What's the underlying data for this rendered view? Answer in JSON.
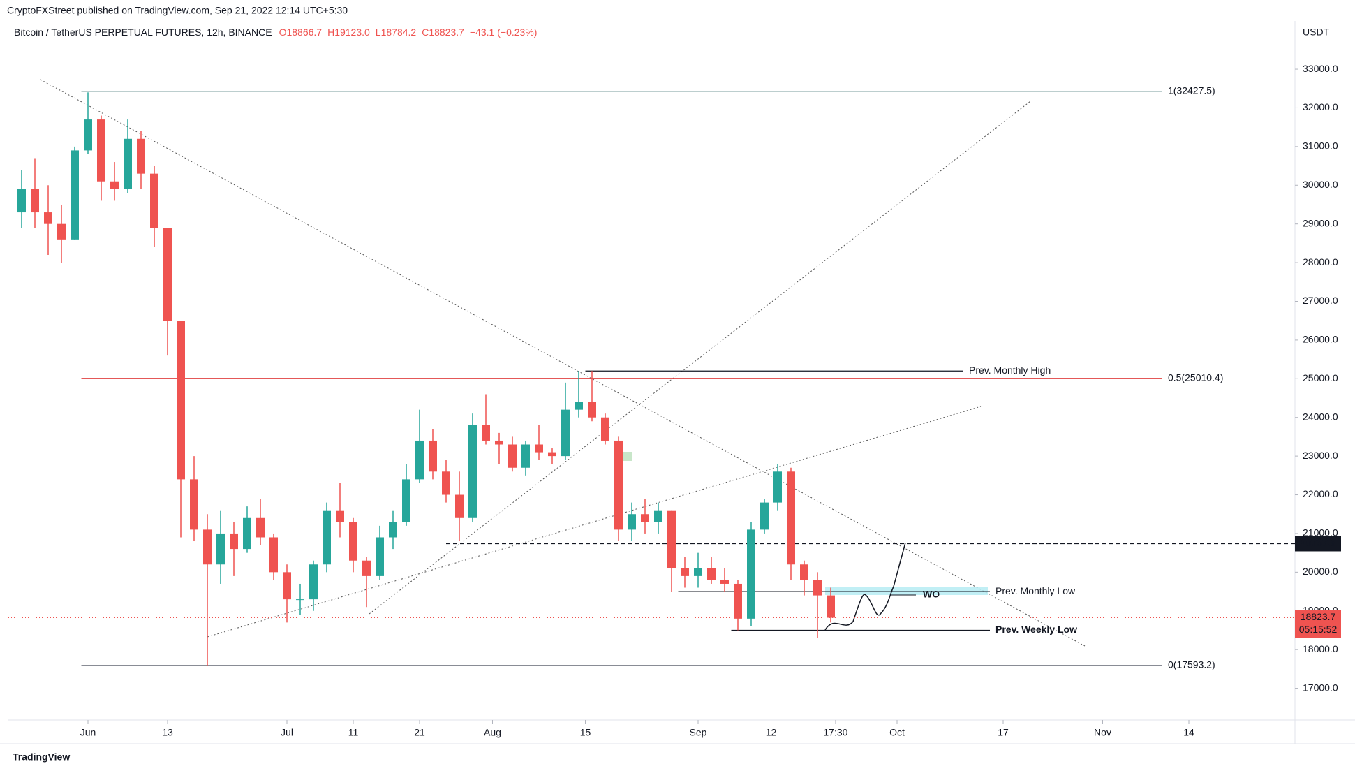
{
  "header": {
    "publisher": "CryptoFXStreet published on TradingView.com, Sep 21, 2022 12:14 UTC+5:30",
    "symbol": "Bitcoin / TetherUS PERPETUAL FUTURES, 12h, BINANCE",
    "readout": [
      "O18866.7",
      "H19123.0",
      "L18784.2",
      "C18823.7",
      "−43.1 (−0.23%)"
    ],
    "footer": "TradingView"
  },
  "chart_data": {
    "type": "candlestick",
    "y_unit": "USDT",
    "grid": false,
    "up_color": "#26a69a",
    "down_color": "#ef5350",
    "xlim": [
      "May 20",
      "Nov 30"
    ],
    "ylim": [
      16180,
      34120
    ],
    "xticks": [
      {
        "value": "Jun 1",
        "label": "Jun"
      },
      {
        "value": "Jun 13",
        "label": "13"
      },
      {
        "value": "Jul 1",
        "label": "Jul"
      },
      {
        "value": "Jul 11",
        "label": "11"
      },
      {
        "value": "Jul 21",
        "label": "21"
      },
      {
        "value": "Aug 1",
        "label": "Aug"
      },
      {
        "value": "Aug 15",
        "label": "15"
      },
      {
        "value": "Sep 1",
        "label": "Sep"
      },
      {
        "value": "Sep 12",
        "label": "12"
      },
      {
        "value": "Sep 21 17:30",
        "label": "17:30"
      },
      {
        "value": "Oct 1",
        "label": "Oct"
      },
      {
        "value": "Oct 17",
        "label": "17"
      },
      {
        "value": "Nov 1",
        "label": "Nov"
      },
      {
        "value": "Nov 14",
        "label": "14"
      }
    ],
    "yticks": [
      {
        "value": 17000,
        "label": "17000.0"
      },
      {
        "value": 18000,
        "label": "18000.0"
      },
      {
        "value": 19000,
        "label": "19000.0"
      },
      {
        "value": 20000,
        "label": "20000.0"
      },
      {
        "value": 21000,
        "label": "21000.0"
      },
      {
        "value": 22000,
        "label": "22000.0"
      },
      {
        "value": 23000,
        "label": "23000.0"
      },
      {
        "value": 24000,
        "label": "24000.0"
      },
      {
        "value": 25000,
        "label": "25000.0"
      },
      {
        "value": 26000,
        "label": "26000.0"
      },
      {
        "value": 27000,
        "label": "27000.0"
      },
      {
        "value": 28000,
        "label": "28000.0"
      },
      {
        "value": 29000,
        "label": "29000.0"
      },
      {
        "value": 30000,
        "label": "30000.0"
      },
      {
        "value": 31000,
        "label": "31000.0"
      },
      {
        "value": 32000,
        "label": "32000.0"
      },
      {
        "value": 33000,
        "label": "33000.0"
      }
    ],
    "x": [
      "May 21",
      "May 23",
      "May 25",
      "May 27",
      "May 29",
      "May 31",
      "Jun 2",
      "Jun 4",
      "Jun 6",
      "Jun 8",
      "Jun 10",
      "Jun 12",
      "Jun 14",
      "Jun 16",
      "Jun 18",
      "Jun 20",
      "Jun 22",
      "Jun 24",
      "Jun 26",
      "Jun 28",
      "Jun 30",
      "Jul 2",
      "Jul 4",
      "Jul 6",
      "Jul 8",
      "Jul 10",
      "Jul 12",
      "Jul 14",
      "Jul 16",
      "Jul 18",
      "Jul 20",
      "Jul 22",
      "Jul 24",
      "Jul 26",
      "Jul 28",
      "Jul 30",
      "Aug 1",
      "Aug 3",
      "Aug 5",
      "Aug 7",
      "Aug 9",
      "Aug 11",
      "Aug 13",
      "Aug 15",
      "Aug 17",
      "Aug 19",
      "Aug 21",
      "Aug 23",
      "Aug 25",
      "Aug 27",
      "Aug 29",
      "Aug 31",
      "Sep 2",
      "Sep 4",
      "Sep 6",
      "Sep 8",
      "Sep 10",
      "Sep 12",
      "Sep 14",
      "Sep 16",
      "Sep 18",
      "Sep 20"
    ],
    "ohlc": [
      [
        29300,
        30400,
        28900,
        29900
      ],
      [
        29900,
        30700,
        28900,
        29300
      ],
      [
        29300,
        30000,
        28200,
        29000
      ],
      [
        29000,
        29500,
        28000,
        28600
      ],
      [
        28600,
        31000,
        28600,
        30900
      ],
      [
        30900,
        32400,
        30800,
        31700
      ],
      [
        31700,
        31800,
        29600,
        30100
      ],
      [
        30100,
        30600,
        29600,
        29900
      ],
      [
        29900,
        31700,
        29800,
        31200
      ],
      [
        31200,
        31400,
        29900,
        30300
      ],
      [
        30300,
        30500,
        28400,
        28900
      ],
      [
        28900,
        28900,
        25600,
        26500
      ],
      [
        26500,
        26500,
        20900,
        22400
      ],
      [
        22400,
        23000,
        20800,
        21100
      ],
      [
        21100,
        21500,
        17593,
        20200
      ],
      [
        20200,
        21600,
        19700,
        21000
      ],
      [
        21000,
        21300,
        19900,
        20600
      ],
      [
        20600,
        21700,
        20500,
        21400
      ],
      [
        21400,
        21900,
        20700,
        20900
      ],
      [
        20900,
        21000,
        19800,
        20000
      ],
      [
        20000,
        20200,
        18700,
        19300
      ],
      [
        19300,
        19700,
        18900,
        19300
      ],
      [
        19300,
        20300,
        19000,
        20200
      ],
      [
        20200,
        21800,
        20000,
        21600
      ],
      [
        21600,
        22300,
        20900,
        21300
      ],
      [
        21300,
        21400,
        20000,
        20300
      ],
      [
        20300,
        20400,
        19100,
        19900
      ],
      [
        19900,
        21200,
        19800,
        20900
      ],
      [
        20900,
        21600,
        20600,
        21300
      ],
      [
        21300,
        22800,
        21200,
        22400
      ],
      [
        22400,
        24200,
        22300,
        23400
      ],
      [
        23400,
        23700,
        22400,
        22600
      ],
      [
        22600,
        22900,
        21800,
        22000
      ],
      [
        22000,
        22600,
        20800,
        21400
      ],
      [
        21400,
        24100,
        21300,
        23800
      ],
      [
        23800,
        24600,
        23300,
        23400
      ],
      [
        23400,
        23600,
        22800,
        23300
      ],
      [
        23300,
        23500,
        22600,
        22700
      ],
      [
        22700,
        23400,
        22500,
        23300
      ],
      [
        23300,
        23800,
        22900,
        23100
      ],
      [
        23100,
        23200,
        22800,
        23000
      ],
      [
        23000,
        24900,
        22900,
        24200
      ],
      [
        24200,
        25200,
        24000,
        24400
      ],
      [
        24400,
        25200,
        23900,
        24000
      ],
      [
        24000,
        24100,
        23300,
        23400
      ],
      [
        23400,
        23500,
        20800,
        21100
      ],
      [
        21100,
        21800,
        20800,
        21500
      ],
      [
        21500,
        21900,
        21000,
        21300
      ],
      [
        21300,
        21800,
        21000,
        21600
      ],
      [
        21600,
        21600,
        19500,
        20100
      ],
      [
        20100,
        20400,
        19600,
        19900
      ],
      [
        19900,
        20500,
        19600,
        20100
      ],
      [
        20100,
        20400,
        19700,
        19800
      ],
      [
        19800,
        20100,
        19500,
        19700
      ],
      [
        19700,
        19800,
        18500,
        18800
      ],
      [
        18800,
        21300,
        18600,
        21100
      ],
      [
        21100,
        21900,
        21000,
        21800
      ],
      [
        21800,
        22800,
        21600,
        22600
      ],
      [
        22600,
        22700,
        19800,
        20200
      ],
      [
        20200,
        20300,
        19400,
        19800
      ],
      [
        19800,
        20000,
        18300,
        19400
      ],
      [
        19400,
        19600,
        18700,
        18823.7
      ]
    ],
    "levels": [
      {
        "label": "1(32427.5)",
        "value": 32427.5,
        "from": "May 31",
        "to": "Nov 10",
        "color": "#4e7d7d"
      },
      {
        "label": "0.5(25010.4)",
        "value": 25010.4,
        "from": "May 31",
        "to": "Nov 10",
        "color": "#e04040"
      },
      {
        "label": "0(17593.2)",
        "value": 17593.2,
        "from": "May 31",
        "to": "Nov 10",
        "color": "#787b86"
      },
      {
        "label": "Prev. Monthly High",
        "value": 25200,
        "from": "Aug 15",
        "to": "Oct 11",
        "color": "#131722"
      },
      {
        "label": "Prev. Monthly Low",
        "value": 19500,
        "from": "Aug 29",
        "to": "Oct 15",
        "color": "#131722"
      },
      {
        "label": "Prev. Weekly Low",
        "value": 18500,
        "from": "Sep 6",
        "to": "Oct 15",
        "color": "#131722",
        "bold": true
      }
    ],
    "marked_level": {
      "value": 20737.6,
      "from": "Jul 25"
    },
    "price_line": {
      "value": 18823.7,
      "countdown": "05:15:52",
      "color": "#ef5350"
    },
    "annotation": "WO"
  }
}
